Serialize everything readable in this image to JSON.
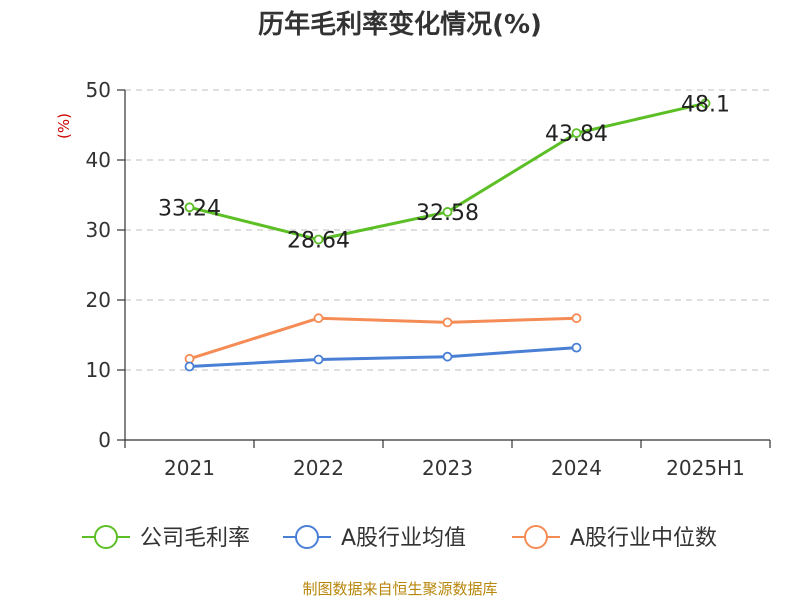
{
  "chart_data": {
    "type": "line",
    "title": "历年毛利率变化情况(%)",
    "ylabel": "(%)",
    "xlabel": "",
    "categories": [
      "2021",
      "2022",
      "2023",
      "2024",
      "2025H1"
    ],
    "ylim": [
      0,
      50
    ],
    "yticks": [
      0,
      10,
      20,
      30,
      40,
      50
    ],
    "grid": true,
    "legend_position": "bottom",
    "series": [
      {
        "name": "公司毛利率",
        "color": "#5cbf26",
        "values": [
          33.24,
          28.64,
          32.58,
          43.84,
          48.1
        ],
        "labels": [
          "33.24",
          "28.64",
          "32.58",
          "43.84",
          "48.1"
        ]
      },
      {
        "name": "A股行业均值",
        "color": "#4a7fd6",
        "values": [
          10.5,
          11.5,
          11.9,
          13.2,
          null
        ]
      },
      {
        "name": "A股行业中位数",
        "color": "#f58c55",
        "values": [
          11.6,
          17.4,
          16.8,
          17.4,
          null
        ]
      }
    ]
  },
  "source": "制图数据来自恒生聚源数据库"
}
